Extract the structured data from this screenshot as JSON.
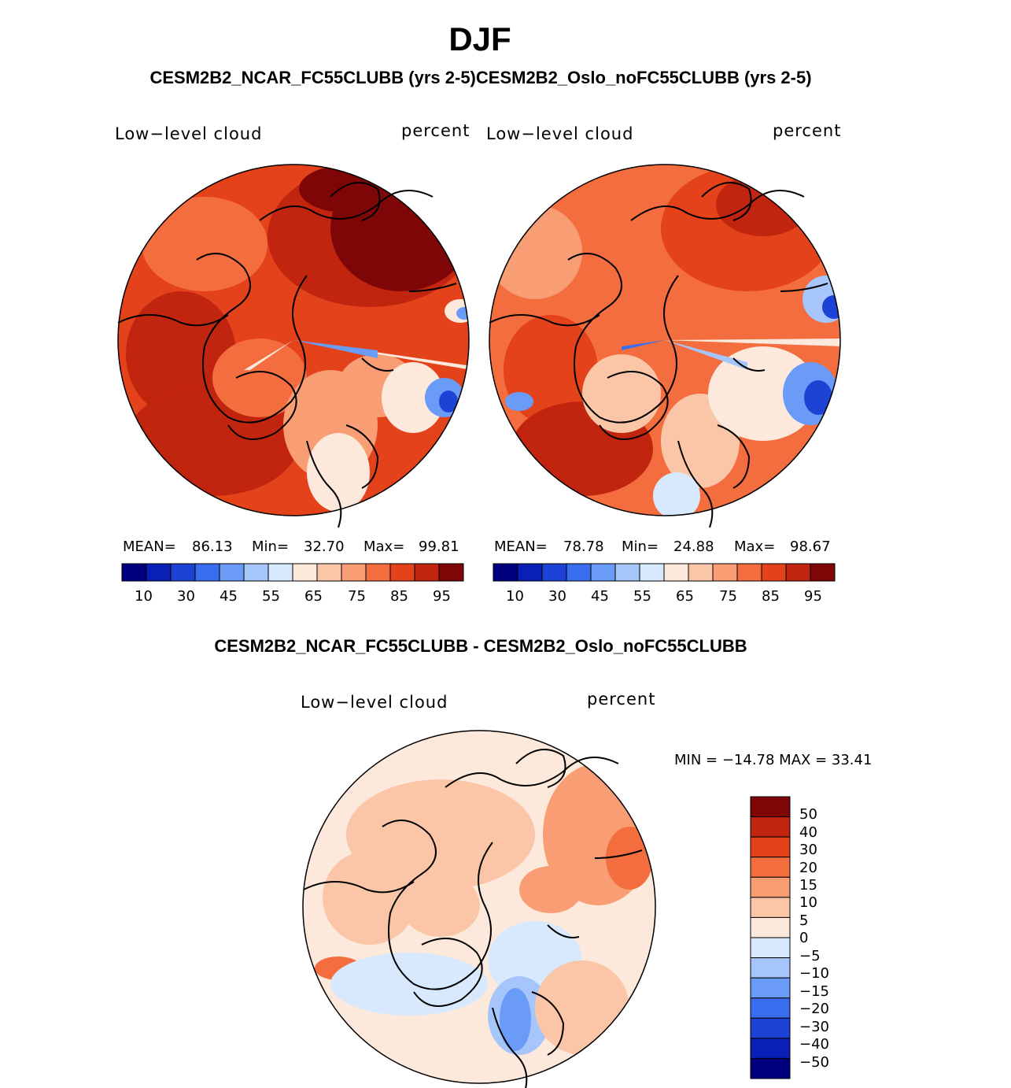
{
  "title": "DJF",
  "pair_title": "CESM2B2_NCAR_FC55CLUBB (yrs 2-5)CESM2B2_Oslo_noFC55CLUBB (yrs 2-5)",
  "diff_title": "CESM2B2_NCAR_FC55CLUBB - CESM2B2_Oslo_noFC55CLUBB",
  "colors": {
    "abs_scale": [
      "#00007f",
      "#0a1fb5",
      "#1d43d6",
      "#3a6ef0",
      "#6a9bf7",
      "#a6c6fb",
      "#d9e9fd",
      "#fde9db",
      "#fbc6a8",
      "#f89d74",
      "#f46d3f",
      "#e4421b",
      "#c2250f",
      "#7f0606"
    ],
    "diff_scale": [
      "#00007f",
      "#0a1fb5",
      "#1d43d6",
      "#3a6ef0",
      "#6a9bf7",
      "#a6c6fb",
      "#d9e9fd",
      "#fde9db",
      "#fbc6a8",
      "#f89d74",
      "#f46d3f",
      "#e4421b",
      "#c2250f",
      "#7f0606"
    ]
  },
  "panels": [
    {
      "variable": "Low−level cloud",
      "units": "percent",
      "stats": {
        "mean_label": "MEAN=",
        "mean": "86.13",
        "min_label": "Min=",
        "min": "32.70",
        "max_label": "Max=",
        "max": "99.81"
      },
      "colorbar_ticks": [
        "10",
        "30",
        "45",
        "55",
        "65",
        "75",
        "85",
        "95"
      ]
    },
    {
      "variable": "Low−level cloud",
      "units": "percent",
      "stats": {
        "mean_label": "MEAN=",
        "mean": "78.78",
        "min_label": "Min=",
        "min": "24.88",
        "max_label": "Max=",
        "max": "98.67"
      },
      "colorbar_ticks": [
        "10",
        "30",
        "45",
        "55",
        "65",
        "75",
        "85",
        "95"
      ]
    }
  ],
  "difference": {
    "variable": "Low−level cloud",
    "units": "percent",
    "min_max": "MIN = −14.78 MAX =   33.41",
    "colorbar_ticks": [
      "50",
      "40",
      "30",
      "20",
      "15",
      "10",
      "5",
      "0",
      "−5",
      "−10",
      "−15",
      "−20",
      "−30",
      "−40",
      "−50"
    ]
  }
}
